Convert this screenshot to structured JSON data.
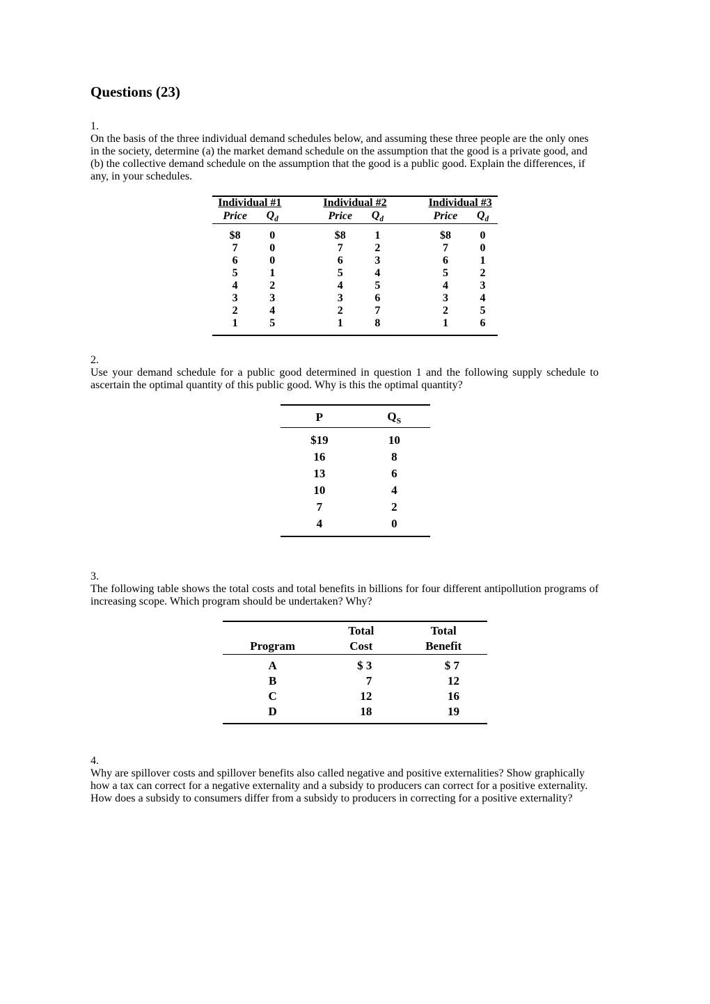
{
  "title": "Questions (23)",
  "q1": {
    "number": "1.",
    "text": "On the basis of the three individual demand schedules below, and assuming these three people are the only ones in the society, determine (a) the market demand schedule on the assumption that the good is a private good, and (b) the collective demand schedule on the assumption that the good is a public good.  Explain the differences, if any, in your schedules.",
    "table": {
      "group_headers": [
        "Individual #1",
        "Individual #2",
        "Individual #3"
      ],
      "sub_headers_price": "Price",
      "sub_headers_qd": "Q",
      "sub_headers_qd_sub": "d",
      "rows": [
        {
          "p1": "$8",
          "q1": "0",
          "p2": "$8",
          "q2": "1",
          "p3": "$8",
          "q3": "0"
        },
        {
          "p1": "7",
          "q1": "0",
          "p2": "7",
          "q2": "2",
          "p3": "7",
          "q3": "0"
        },
        {
          "p1": "6",
          "q1": "0",
          "p2": "6",
          "q2": "3",
          "p3": "6",
          "q3": "1"
        },
        {
          "p1": "5",
          "q1": "1",
          "p2": "5",
          "q2": "4",
          "p3": "5",
          "q3": "2"
        },
        {
          "p1": "4",
          "q1": "2",
          "p2": "4",
          "q2": "5",
          "p3": "4",
          "q3": "3"
        },
        {
          "p1": "3",
          "q1": "3",
          "p2": "3",
          "q2": "6",
          "p3": "3",
          "q3": "4"
        },
        {
          "p1": "2",
          "q1": "4",
          "p2": "2",
          "q2": "7",
          "p3": "2",
          "q3": "5"
        },
        {
          "p1": "1",
          "q1": "5",
          "p2": "1",
          "q2": "8",
          "p3": "1",
          "q3": "6"
        }
      ]
    }
  },
  "q2": {
    "number": "2.",
    "text": "Use your demand schedule for a public good determined in question 1 and the following supply schedule to ascertain the optimal quantity of this public good.  Why is this the optimal quantity?",
    "table": {
      "header_p": "P",
      "header_q": "Q",
      "header_q_sub": "S",
      "rows": [
        {
          "p": "$19",
          "q": "10"
        },
        {
          "p": "16",
          "q": "8"
        },
        {
          "p": "13",
          "q": "6"
        },
        {
          "p": "10",
          "q": "4"
        },
        {
          "p": "7",
          "q": "2"
        },
        {
          "p": "4",
          "q": "0"
        }
      ]
    }
  },
  "q3": {
    "number": "3.",
    "text": "The following table shows the total costs and total benefits in billions for four different antipollution programs of increasing scope.  Which program should be undertaken?  Why?",
    "table": {
      "header_program": "Program",
      "header_tc1": "Total",
      "header_tc2": "Cost",
      "header_tb1": "Total",
      "header_tb2": "Benefit",
      "rows": [
        {
          "prog": "A",
          "tc": "$  3",
          "tb": "$  7"
        },
        {
          "prog": "B",
          "tc": "7",
          "tb": "12"
        },
        {
          "prog": "C",
          "tc": "12",
          "tb": "16"
        },
        {
          "prog": "D",
          "tc": "18",
          "tb": "19"
        }
      ]
    }
  },
  "q4": {
    "number": "4.",
    "text": "Why are spillover costs and spillover benefits also called negative and positive externalities?  Show graphically how a tax can correct for a negative externality and a subsidy to producers can correct for a positive externality.  How does a subsidy to consumers differ from a subsidy to producers in correcting for a positive externality?"
  }
}
